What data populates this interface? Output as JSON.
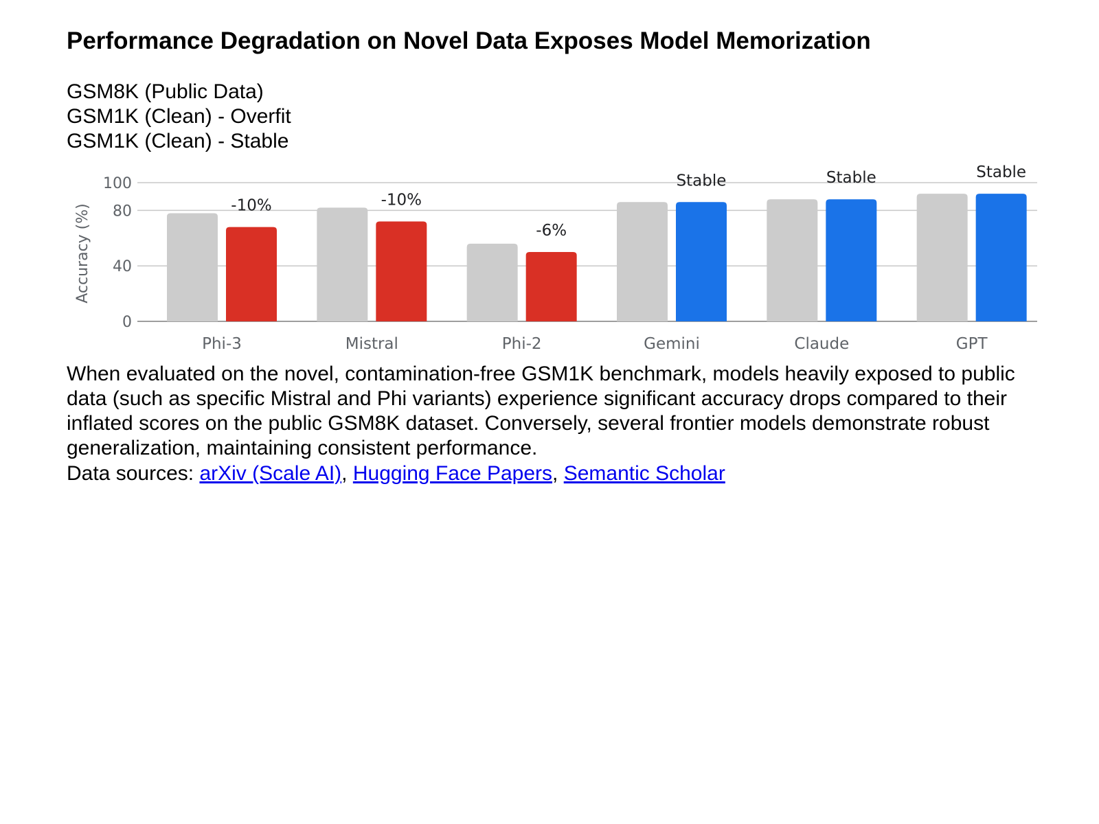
{
  "title": "Performance Degradation on Novel Data Exposes Model Memorization",
  "legend": [
    "GSM8K (Public Data)",
    "GSM1K (Clean) - Overfit",
    "GSM1K (Clean) - Stable"
  ],
  "colors": {
    "public": "#cccccc",
    "overfit": "#d93025",
    "stable": "#1a73e8",
    "grid": "#c8c8c8",
    "axis": "#9e9e9e"
  },
  "chart_data": {
    "type": "bar",
    "categories": [
      "Phi-3",
      "Mistral",
      "Phi-2",
      "Gemini",
      "Claude",
      "GPT"
    ],
    "series": [
      {
        "name": "GSM8K (Public Data)",
        "values": [
          78,
          82,
          56,
          86,
          88,
          92
        ]
      },
      {
        "name": "GSM1K (Clean)",
        "values": [
          68,
          72,
          50,
          86,
          88,
          92
        ]
      }
    ],
    "bar_status": [
      "overfit",
      "overfit",
      "overfit",
      "stable",
      "stable",
      "stable"
    ],
    "annotations": [
      "-10%",
      "-10%",
      "-6%",
      "Stable",
      "Stable",
      "Stable"
    ],
    "ylabel": "Accuracy (%)",
    "yticks": [
      0,
      40,
      80,
      100
    ],
    "ylim": [
      0,
      100
    ],
    "grid": true,
    "legend_position": "top-left"
  },
  "description": "When evaluated on the novel, contamination-free GSM1K benchmark, models heavily exposed to public data (such as specific Mistral and Phi variants) experience significant accuracy drops compared to their inflated scores on the public GSM8K dataset. Conversely, several frontier models demonstrate robust generalization, maintaining consistent performance.",
  "sources": {
    "label": "Data sources:",
    "links": [
      "arXiv (Scale AI)",
      "Hugging Face Papers",
      "Semantic Scholar"
    ],
    "separator": ","
  }
}
